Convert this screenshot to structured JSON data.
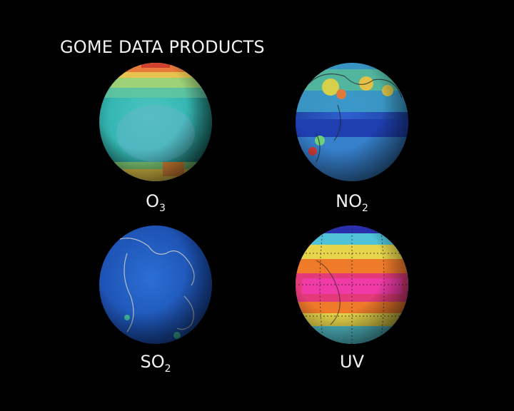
{
  "title": "GOME DATA PRODUCTS",
  "globes": [
    {
      "label": "O",
      "sub": "3",
      "icon": "ozone-globe-icon"
    },
    {
      "label": "NO",
      "sub": "2",
      "icon": "nitrogen-dioxide-globe-icon"
    },
    {
      "label": "SO",
      "sub": "2",
      "icon": "sulfur-dioxide-globe-icon"
    },
    {
      "label": "UV",
      "sub": "",
      "icon": "uv-globe-icon"
    }
  ],
  "colors": {
    "background": "#000000",
    "text": "#f2f2f2"
  }
}
